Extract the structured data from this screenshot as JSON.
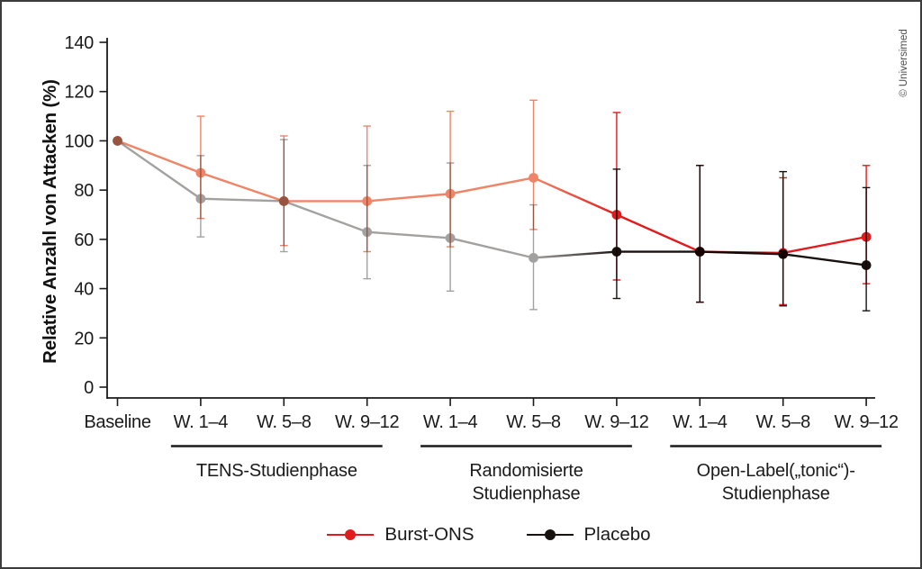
{
  "watermark": "© Universimed",
  "chart_data": {
    "type": "line",
    "title": "",
    "xlabel": "",
    "ylabel": "Relative Anzahl von Attacken (%)",
    "ylim": [
      0,
      140
    ],
    "yticks": [
      0,
      20,
      40,
      60,
      80,
      100,
      120,
      140
    ],
    "grid": false,
    "legend_position": "bottom",
    "categories": [
      "Baseline",
      "W. 1–4",
      "W. 5–8",
      "W. 9–12",
      "W. 1–4",
      "W. 5–8",
      "W. 9–12",
      "W. 1–4",
      "W. 5–8",
      "W. 9–12"
    ],
    "phase_groups": [
      {
        "label_lines": [
          "TENS-Studienphase"
        ],
        "from_index": 1,
        "to_index": 3
      },
      {
        "label_lines": [
          "Randomisierte",
          "Studienphase"
        ],
        "from_index": 4,
        "to_index": 6
      },
      {
        "label_lines": [
          "Open-Label(„tonic“)-",
          "Studienphase"
        ],
        "from_index": 7,
        "to_index": 9
      }
    ],
    "series": [
      {
        "name": "Placebo",
        "color_blind": "#a3a19f",
        "color_open": "#18120f",
        "open_from_index": 6,
        "values": [
          100,
          76.5,
          75.5,
          63,
          60.5,
          52.5,
          55,
          55,
          54,
          49.5
        ],
        "err_low": [
          null,
          61,
          55,
          44,
          39,
          31.5,
          36,
          34.5,
          33,
          31
        ],
        "err_high": [
          null,
          94,
          100.5,
          90,
          91,
          74,
          88.5,
          90,
          87.5,
          81
        ]
      },
      {
        "name": "Burst-ONS",
        "color_blind": "#ef8466",
        "color_open": "#e21a1c",
        "open_from_index": 6,
        "values": [
          100,
          87,
          75.5,
          75.5,
          78.5,
          85,
          70,
          55,
          54.5,
          61
        ],
        "err_low": [
          null,
          68.5,
          57.5,
          55,
          57,
          64,
          43.5,
          34.5,
          33.5,
          42
        ],
        "err_high": [
          null,
          110,
          102,
          106,
          112,
          116.5,
          111.5,
          90,
          85,
          90
        ]
      }
    ],
    "legend": [
      {
        "label": "Burst-ONS",
        "color": "#e21a1c"
      },
      {
        "label": "Placebo",
        "color": "#18120f"
      }
    ]
  }
}
